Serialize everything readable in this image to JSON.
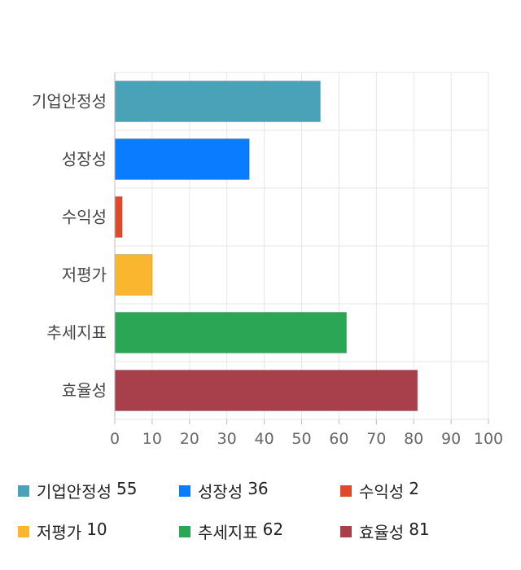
{
  "chart_data": {
    "type": "bar",
    "orientation": "horizontal",
    "categories": [
      "기업안정성",
      "성장성",
      "수익성",
      "저평가",
      "추세지표",
      "효율성"
    ],
    "values": [
      55,
      36,
      2,
      10,
      62,
      81
    ],
    "colors": [
      "#4aa2b9",
      "#0a7cff",
      "#e04a2a",
      "#fbb62f",
      "#2ba655",
      "#a8404c"
    ],
    "xlim": [
      0,
      100
    ],
    "xticks": [
      "0",
      "10",
      "20",
      "30",
      "40",
      "50",
      "60",
      "70",
      "80",
      "90",
      "100"
    ],
    "grid": true,
    "legend": {
      "position": "bottom",
      "items": [
        {
          "label": "기업안정성",
          "value": "55"
        },
        {
          "label": "성장성",
          "value": "36"
        },
        {
          "label": "수익성",
          "value": "2"
        },
        {
          "label": "저평가",
          "value": "10"
        },
        {
          "label": "추세지표",
          "value": "62"
        },
        {
          "label": "효율성",
          "value": "81"
        }
      ]
    }
  }
}
